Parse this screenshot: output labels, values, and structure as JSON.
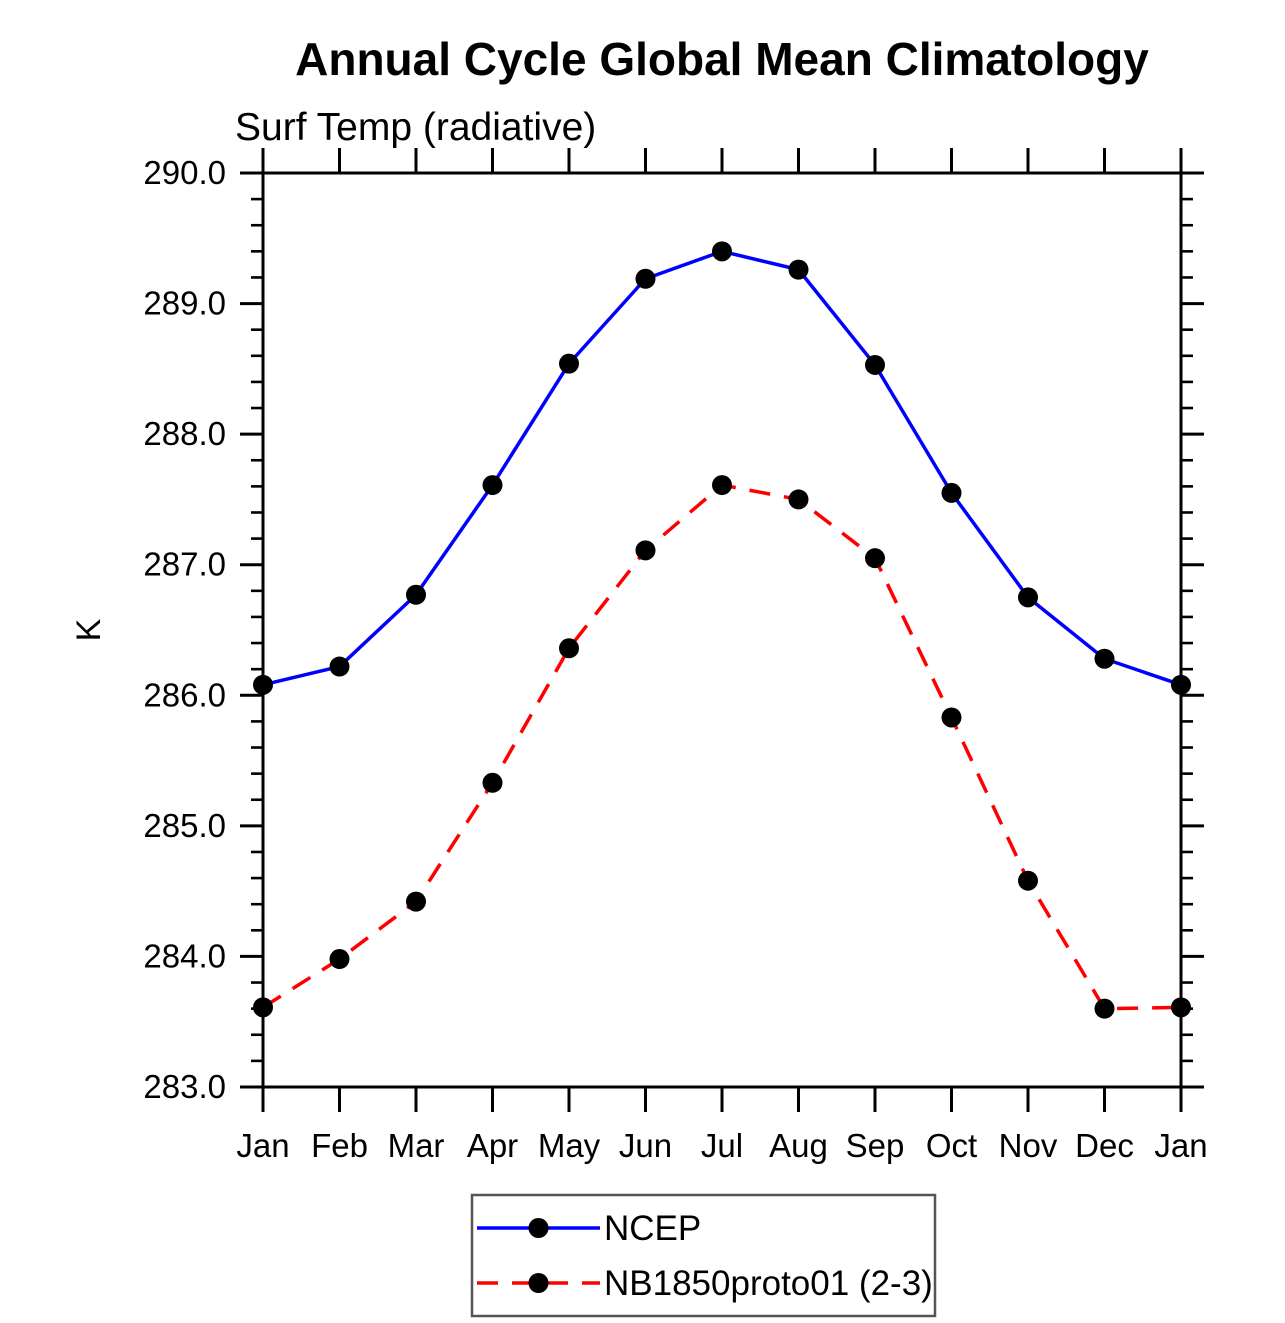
{
  "page": {
    "background": "#ffffff"
  },
  "chart_data": {
    "type": "line",
    "title": "Annual Cycle Global Mean Climatology",
    "subtitle": "Surf Temp (radiative)",
    "xlabel": "",
    "ylabel": "K",
    "x_ticklabels": [
      "Jan",
      "Feb",
      "Mar",
      "Apr",
      "May",
      "Jun",
      "Jul",
      "Aug",
      "Sep",
      "Oct",
      "Nov",
      "Dec",
      "Jan"
    ],
    "ylim": [
      283.0,
      290.0
    ],
    "y_major_step": 1.0,
    "y_minor_step": 0.2,
    "y_ticklabels": [
      "283.0",
      "284.0",
      "285.0",
      "286.0",
      "287.0",
      "288.0",
      "289.0",
      "290.0"
    ],
    "grid": false,
    "legend_position": "bottom-center",
    "series": [
      {
        "name": "NCEP",
        "color": "#0000ff",
        "line_style": "solid",
        "marker": "filled-circle",
        "marker_color": "#000000",
        "values": [
          286.08,
          286.22,
          286.77,
          287.61,
          288.54,
          289.19,
          289.4,
          289.26,
          288.53,
          287.55,
          286.75,
          286.28,
          286.08
        ]
      },
      {
        "name": "NB1850proto01 (2-3)",
        "color": "#ff0000",
        "line_style": "dashed",
        "marker": "filled-circle",
        "marker_color": "#000000",
        "values": [
          283.61,
          283.98,
          284.42,
          285.33,
          286.36,
          287.11,
          287.61,
          287.5,
          287.05,
          285.83,
          284.58,
          283.6,
          283.61
        ]
      }
    ]
  }
}
